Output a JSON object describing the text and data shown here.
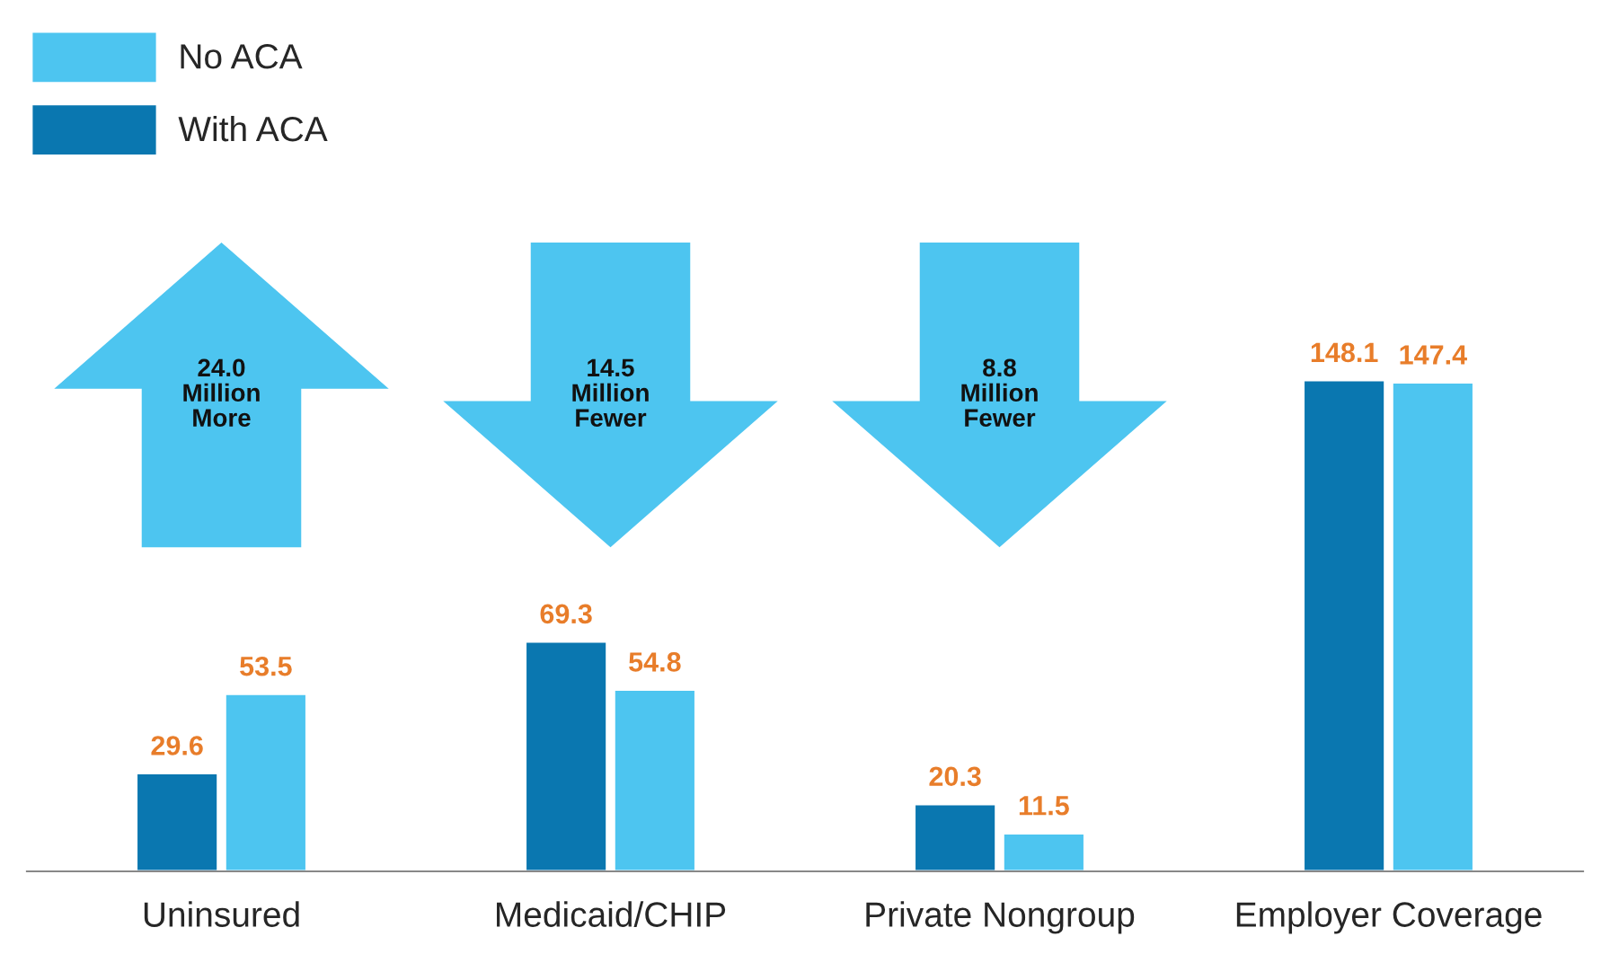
{
  "chart_data": {
    "type": "bar",
    "categories": [
      "Uninsured",
      "Medicaid/CHIP",
      "Private Nongroup",
      "Employer Coverage"
    ],
    "series": [
      {
        "name": "With ACA",
        "color": "#0a77b0",
        "values": [
          29.6,
          69.3,
          20.3,
          148.1
        ]
      },
      {
        "name": "No ACA",
        "color": "#4dc5f0",
        "values": [
          53.5,
          54.8,
          11.5,
          147.4
        ]
      }
    ],
    "data_labels": true,
    "legend": "top left",
    "grid": false,
    "annotations": [
      "24.0\nMillion\nMore",
      "14.5\nMillion\nFewer",
      "8.8\nMillion\nFewer"
    ]
  }
}
